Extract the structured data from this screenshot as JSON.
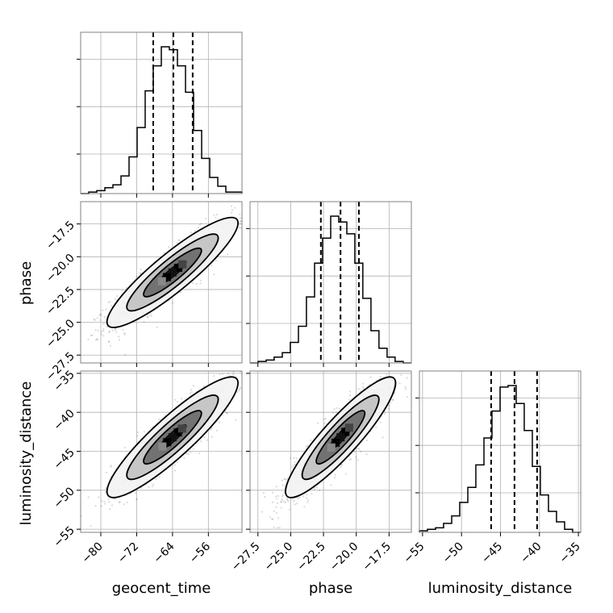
{
  "chart_data": {
    "type": "corner",
    "parameters": [
      "geocent_time",
      "phase",
      "luminosity_distance"
    ],
    "colors": {
      "line": "#000000",
      "grid": "#b0b0b0",
      "frame": "#808080",
      "scatter": "#555555"
    },
    "grid": true,
    "labels": {
      "x": [
        "geocent_time",
        "phase",
        "luminosity_distance"
      ],
      "y_row1": "phase",
      "y_row2": "luminosity_distance"
    },
    "ticks": {
      "geocent_time": [
        "−80",
        "−72",
        "−64",
        "−56"
      ],
      "phase": [
        "−27.5",
        "−25.0",
        "−22.5",
        "−20.0",
        "−17.5"
      ],
      "luminosity_distance": [
        "−55",
        "−50",
        "−45",
        "−40",
        "−35"
      ]
    },
    "ranges": {
      "geocent_time": [
        -84.5,
        -48.5
      ],
      "phase": [
        -28.1,
        -15.8
      ],
      "luminosity_distance": [
        -55.4,
        -34.7
      ]
    },
    "quantiles": {
      "geocent_time": [
        -68.3,
        -63.8,
        -59.5
      ],
      "phase": [
        -22.7,
        -21.2,
        -19.8
      ],
      "luminosity_distance": [
        -46.2,
        -43.2,
        -40.3
      ]
    },
    "histograms": [
      {
        "parameter": "geocent_time",
        "edges": [
          -84.5,
          -82.7,
          -80.9,
          -79.1,
          -77.3,
          -75.5,
          -73.7,
          -71.9,
          -70.1,
          -68.3,
          -66.5,
          -64.7,
          -62.9,
          -61.1,
          -59.3,
          -57.5,
          -55.7,
          -53.9,
          -52.1,
          -50.3,
          -48.5
        ],
        "values": [
          0,
          1,
          2,
          4,
          6,
          12,
          25,
          45,
          70,
          87,
          100,
          98,
          87,
          69,
          43,
          24,
          11,
          5,
          1,
          1
        ]
      },
      {
        "parameter": "phase",
        "edges": [
          -28.1,
          -27.49,
          -26.87,
          -26.26,
          -25.64,
          -25.03,
          -24.41,
          -23.8,
          -23.18,
          -22.57,
          -21.95,
          -21.34,
          -20.72,
          -20.11,
          -19.5,
          -18.88,
          -18.27,
          -17.65,
          -17.04,
          -16.42,
          -15.8
        ],
        "values": [
          0,
          1,
          2,
          4,
          7,
          14,
          25,
          45,
          68,
          85,
          100,
          96,
          88,
          68,
          44,
          22,
          10,
          4,
          1,
          0
        ]
      },
      {
        "parameter": "luminosity_distance",
        "edges": [
          -55.4,
          -54.37,
          -53.33,
          -52.3,
          -51.26,
          -50.23,
          -49.19,
          -48.16,
          -47.12,
          -46.09,
          -45.05,
          -44.02,
          -42.98,
          -41.95,
          -40.91,
          -39.88,
          -38.84,
          -37.81,
          -36.77,
          -35.74,
          -34.7
        ],
        "values": [
          1,
          2,
          3,
          6,
          11,
          20,
          30,
          45,
          63,
          81,
          97,
          98,
          86,
          68,
          44,
          25,
          14,
          7,
          2,
          0
        ]
      }
    ],
    "pairs": [
      {
        "x": "geocent_time",
        "y": "phase",
        "center": [
          -64,
          -21.2
        ],
        "sigma": [
          6.8,
          1.95
        ],
        "rho": 0.9
      },
      {
        "x": "geocent_time",
        "y": "luminosity_distance",
        "center": [
          -64,
          -43.2
        ],
        "sigma": [
          6.8,
          3.6
        ],
        "rho": 0.9
      },
      {
        "x": "phase",
        "y": "luminosity_distance",
        "center": [
          -21.2,
          -43.2
        ],
        "sigma": [
          1.95,
          3.6
        ],
        "rho": 0.9
      }
    ]
  }
}
